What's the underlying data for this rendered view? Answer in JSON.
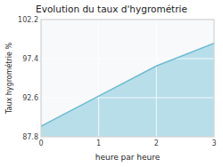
{
  "chart_data": {
    "type": "area",
    "title": "Evolution du taux d'hygrométrie",
    "xlabel": "heure par heure",
    "ylabel": "Taux hygrométrie %",
    "x": [
      0,
      1,
      2,
      3
    ],
    "values": [
      89.1,
      92.8,
      96.5,
      99.3
    ],
    "color": "#6bbdd4",
    "xlim": [
      0,
      3
    ],
    "ylim": [
      87.8,
      102.2
    ],
    "xticks": [
      0,
      1,
      2,
      3
    ],
    "yticks": [
      87.8,
      92.6,
      97.4,
      102.2
    ],
    "grid": true
  }
}
